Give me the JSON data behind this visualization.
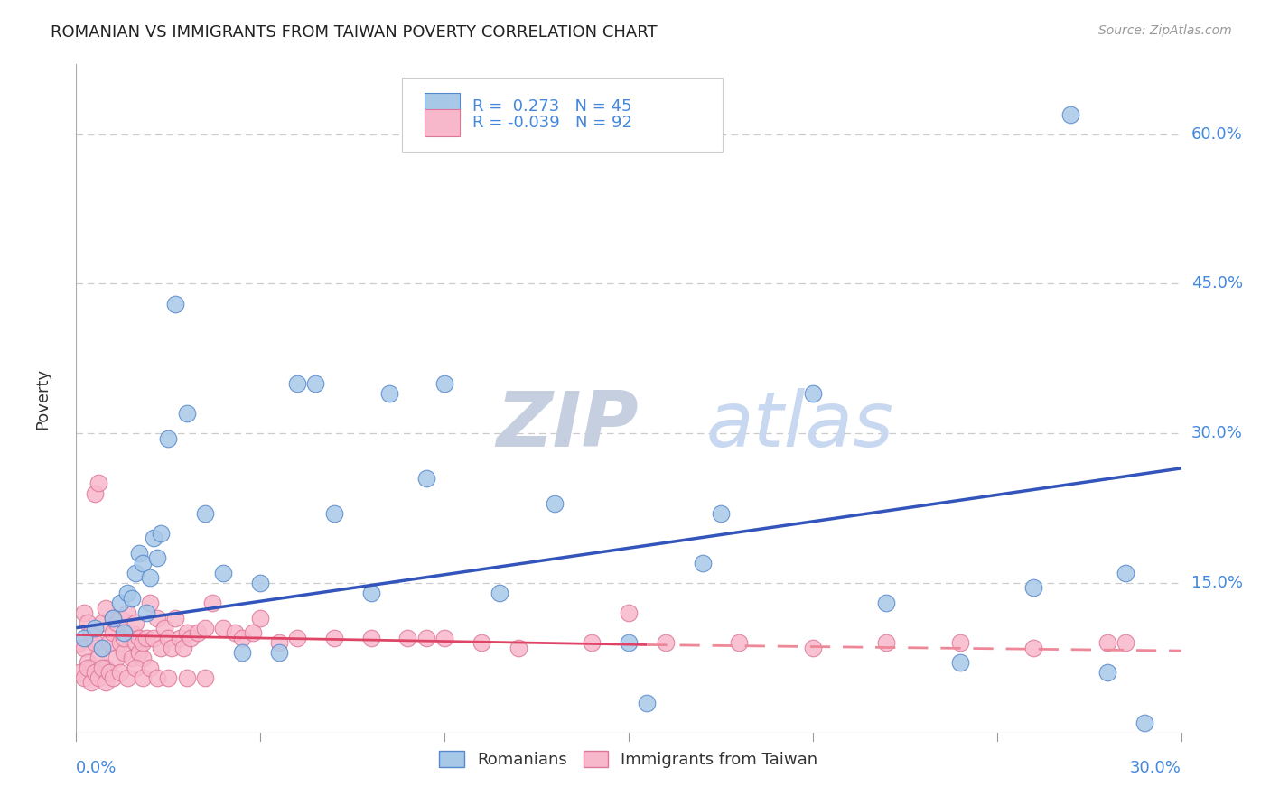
{
  "title": "ROMANIAN VS IMMIGRANTS FROM TAIWAN POVERTY CORRELATION CHART",
  "source": "Source: ZipAtlas.com",
  "ylabel": "Poverty",
  "yticks": [
    0.0,
    0.15,
    0.3,
    0.45,
    0.6
  ],
  "ytick_labels": [
    "",
    "15.0%",
    "30.0%",
    "45.0%",
    "60.0%"
  ],
  "xtick_labels": [
    "0.0%",
    "30.0%"
  ],
  "xlim": [
    0.0,
    0.3
  ],
  "ylim": [
    0.0,
    0.67
  ],
  "romanian_color": "#a8c8e8",
  "romanian_edge": "#5588cc",
  "taiwan_color": "#f8b8cc",
  "taiwan_edge": "#dd7799",
  "trend_romanian_color": "#3355bb",
  "trend_taiwan_solid_color": "#dd4466",
  "trend_taiwan_dash_color": "#ee8899",
  "background_color": "#ffffff",
  "grid_color": "#cccccc",
  "watermark_zip_color": "#c8d4e8",
  "watermark_atlas_color": "#c8d8f0",
  "title_color": "#222222",
  "axis_label_color": "#4488dd",
  "legend_text_color": "#4488dd",
  "romanian_x": [
    0.002,
    0.005,
    0.007,
    0.01,
    0.012,
    0.014,
    0.015,
    0.016,
    0.017,
    0.018,
    0.02,
    0.021,
    0.022,
    0.023,
    0.025,
    0.027,
    0.04,
    0.055,
    0.06,
    0.065,
    0.08,
    0.095,
    0.115,
    0.155,
    0.2,
    0.27,
    0.285,
    0.013,
    0.019,
    0.03,
    0.035,
    0.045,
    0.05,
    0.07,
    0.085,
    0.1,
    0.13,
    0.17,
    0.24,
    0.28,
    0.29,
    0.15,
    0.175,
    0.22,
    0.26
  ],
  "romanian_y": [
    0.095,
    0.105,
    0.085,
    0.115,
    0.13,
    0.14,
    0.135,
    0.16,
    0.18,
    0.17,
    0.155,
    0.195,
    0.175,
    0.2,
    0.295,
    0.43,
    0.16,
    0.08,
    0.35,
    0.35,
    0.14,
    0.255,
    0.14,
    0.03,
    0.34,
    0.62,
    0.16,
    0.1,
    0.12,
    0.32,
    0.22,
    0.08,
    0.15,
    0.22,
    0.34,
    0.35,
    0.23,
    0.17,
    0.07,
    0.06,
    0.01,
    0.09,
    0.22,
    0.13,
    0.145
  ],
  "taiwan_x": [
    0.001,
    0.002,
    0.002,
    0.003,
    0.003,
    0.004,
    0.004,
    0.005,
    0.005,
    0.006,
    0.006,
    0.007,
    0.007,
    0.008,
    0.008,
    0.009,
    0.01,
    0.01,
    0.011,
    0.011,
    0.012,
    0.012,
    0.013,
    0.013,
    0.014,
    0.015,
    0.015,
    0.016,
    0.016,
    0.017,
    0.017,
    0.018,
    0.018,
    0.019,
    0.02,
    0.021,
    0.022,
    0.023,
    0.024,
    0.025,
    0.026,
    0.027,
    0.028,
    0.029,
    0.03,
    0.031,
    0.033,
    0.035,
    0.037,
    0.04,
    0.043,
    0.045,
    0.048,
    0.05,
    0.055,
    0.06,
    0.07,
    0.08,
    0.09,
    0.095,
    0.1,
    0.11,
    0.12,
    0.14,
    0.15,
    0.16,
    0.18,
    0.2,
    0.22,
    0.24,
    0.26,
    0.28,
    0.285,
    0.001,
    0.002,
    0.003,
    0.004,
    0.005,
    0.006,
    0.007,
    0.008,
    0.009,
    0.01,
    0.012,
    0.014,
    0.016,
    0.018,
    0.02,
    0.022,
    0.025,
    0.03,
    0.035
  ],
  "taiwan_y": [
    0.09,
    0.085,
    0.12,
    0.07,
    0.11,
    0.1,
    0.065,
    0.24,
    0.09,
    0.25,
    0.075,
    0.11,
    0.085,
    0.125,
    0.065,
    0.09,
    0.1,
    0.115,
    0.11,
    0.075,
    0.09,
    0.115,
    0.08,
    0.095,
    0.12,
    0.1,
    0.075,
    0.09,
    0.11,
    0.08,
    0.095,
    0.075,
    0.09,
    0.095,
    0.13,
    0.095,
    0.115,
    0.085,
    0.105,
    0.095,
    0.085,
    0.115,
    0.095,
    0.085,
    0.1,
    0.095,
    0.1,
    0.105,
    0.13,
    0.105,
    0.1,
    0.095,
    0.1,
    0.115,
    0.09,
    0.095,
    0.095,
    0.095,
    0.095,
    0.095,
    0.095,
    0.09,
    0.085,
    0.09,
    0.12,
    0.09,
    0.09,
    0.085,
    0.09,
    0.09,
    0.085,
    0.09,
    0.09,
    0.06,
    0.055,
    0.065,
    0.05,
    0.06,
    0.055,
    0.065,
    0.05,
    0.06,
    0.055,
    0.06,
    0.055,
    0.065,
    0.055,
    0.065,
    0.055,
    0.055,
    0.055,
    0.055
  ],
  "trend_ro_x0": 0.0,
  "trend_ro_x1": 0.3,
  "trend_ro_y0": 0.105,
  "trend_ro_y1": 0.265,
  "trend_tw_solid_x0": 0.0,
  "trend_tw_solid_x1": 0.155,
  "trend_tw_solid_y0": 0.098,
  "trend_tw_solid_y1": 0.088,
  "trend_tw_dash_x0": 0.155,
  "trend_tw_dash_x1": 0.3,
  "trend_tw_dash_y0": 0.088,
  "trend_tw_dash_y1": 0.082
}
